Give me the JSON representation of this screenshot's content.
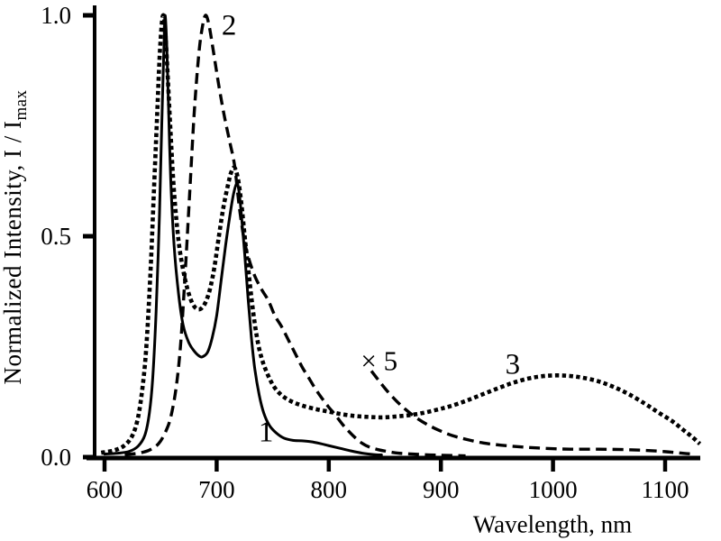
{
  "chart_data": {
    "type": "line",
    "title": "",
    "xlabel": "Wavelength, nm",
    "ylabel": "Normalized Intensity, I / I_max",
    "ylabel_main": "Normalized Intensity, I / I",
    "ylabel_sub": "max",
    "xlim": [
      592,
      1135
    ],
    "ylim": [
      0,
      1.02
    ],
    "x_ticks": [
      600,
      700,
      800,
      900,
      1000,
      1100
    ],
    "x_tick_labels": [
      "600",
      "700",
      "800",
      "900",
      "1000",
      "1100"
    ],
    "y_ticks": [
      0.0,
      0.5,
      1.0
    ],
    "y_tick_labels": [
      "0.0",
      "0.5",
      "1.0"
    ],
    "grid": false,
    "legend": "none",
    "colors": {
      "foreground": "#000000",
      "background": "#ffffff"
    },
    "annotations": [
      {
        "name": "curve-1-label",
        "text": "1",
        "x": 744,
        "y": 0.059,
        "size": 33
      },
      {
        "name": "curve-2-label",
        "text": "2",
        "x": 711,
        "y": 0.98,
        "size": 33
      },
      {
        "name": "curve-3-label",
        "text": "3",
        "x": 964,
        "y": 0.212,
        "size": 33
      },
      {
        "name": "times-5-label",
        "text": "× 5",
        "x": 845,
        "y": 0.219,
        "size": 31
      }
    ],
    "series": [
      {
        "name": "curve-1",
        "label": "1",
        "line_style": "solid",
        "stroke_width": 3,
        "color": "#000000",
        "points": [
          [
            600,
            0.007
          ],
          [
            612,
            0.009
          ],
          [
            622,
            0.013
          ],
          [
            630,
            0.025
          ],
          [
            636,
            0.05
          ],
          [
            640,
            0.1
          ],
          [
            643,
            0.18
          ],
          [
            646,
            0.33
          ],
          [
            649,
            0.55
          ],
          [
            651,
            0.75
          ],
          [
            653,
            0.93
          ],
          [
            654,
            1.0
          ],
          [
            655.5,
            0.93
          ],
          [
            657,
            0.8
          ],
          [
            659,
            0.63
          ],
          [
            662,
            0.48
          ],
          [
            666,
            0.37
          ],
          [
            670,
            0.3
          ],
          [
            675,
            0.26
          ],
          [
            680,
            0.24
          ],
          [
            685,
            0.228
          ],
          [
            688,
            0.228
          ],
          [
            692,
            0.238
          ],
          [
            696,
            0.27
          ],
          [
            700,
            0.32
          ],
          [
            704,
            0.4
          ],
          [
            708,
            0.48
          ],
          [
            712,
            0.55
          ],
          [
            715,
            0.595
          ],
          [
            718,
            0.62
          ],
          [
            720,
            0.6
          ],
          [
            722,
            0.55
          ],
          [
            725,
            0.46
          ],
          [
            728,
            0.36
          ],
          [
            731,
            0.27
          ],
          [
            734,
            0.2
          ],
          [
            738,
            0.14
          ],
          [
            742,
            0.1
          ],
          [
            747,
            0.072
          ],
          [
            753,
            0.055
          ],
          [
            760,
            0.043
          ],
          [
            768,
            0.038
          ],
          [
            776,
            0.037
          ],
          [
            784,
            0.035
          ],
          [
            792,
            0.031
          ],
          [
            800,
            0.026
          ],
          [
            810,
            0.02
          ],
          [
            820,
            0.014
          ],
          [
            830,
            0.009
          ],
          [
            840,
            0.006
          ],
          [
            847,
            0.005
          ]
        ]
      },
      {
        "name": "curve-2",
        "label": "2",
        "line_style": "long-dash",
        "stroke_width": 3.4,
        "color": "#000000",
        "points": [
          [
            618,
            0.006
          ],
          [
            630,
            0.009
          ],
          [
            640,
            0.016
          ],
          [
            648,
            0.03
          ],
          [
            654,
            0.055
          ],
          [
            659,
            0.09
          ],
          [
            664,
            0.16
          ],
          [
            668,
            0.26
          ],
          [
            672,
            0.42
          ],
          [
            676,
            0.6
          ],
          [
            680,
            0.78
          ],
          [
            684,
            0.91
          ],
          [
            687,
            0.97
          ],
          [
            690,
            1.0
          ],
          [
            693,
            0.98
          ],
          [
            697,
            0.92
          ],
          [
            702,
            0.84
          ],
          [
            707,
            0.77
          ],
          [
            712,
            0.71
          ],
          [
            716,
            0.66
          ],
          [
            720,
            0.57
          ],
          [
            724,
            0.5
          ],
          [
            728,
            0.455
          ],
          [
            734,
            0.41
          ],
          [
            740,
            0.38
          ],
          [
            746,
            0.355
          ],
          [
            752,
            0.32
          ],
          [
            758,
            0.295
          ],
          [
            764,
            0.265
          ],
          [
            770,
            0.235
          ],
          [
            776,
            0.205
          ],
          [
            782,
            0.18
          ],
          [
            788,
            0.155
          ],
          [
            794,
            0.133
          ],
          [
            800,
            0.113
          ],
          [
            806,
            0.095
          ],
          [
            812,
            0.075
          ],
          [
            818,
            0.058
          ],
          [
            824,
            0.043
          ],
          [
            830,
            0.031
          ],
          [
            836,
            0.023
          ],
          [
            844,
            0.017
          ],
          [
            852,
            0.013
          ],
          [
            862,
            0.009
          ],
          [
            875,
            0.007
          ],
          [
            890,
            0.005
          ],
          [
            905,
            0.004
          ],
          [
            922,
            0.003
          ]
        ]
      },
      {
        "name": "curve-2-times-5-tail",
        "label": "× 5",
        "line_style": "long-dash",
        "stroke_width": 3.4,
        "color": "#000000",
        "points": [
          [
            838,
            0.195
          ],
          [
            845,
            0.172
          ],
          [
            852,
            0.15
          ],
          [
            860,
            0.128
          ],
          [
            868,
            0.109
          ],
          [
            877,
            0.091
          ],
          [
            887,
            0.075
          ],
          [
            898,
            0.061
          ],
          [
            910,
            0.049
          ],
          [
            923,
            0.04
          ],
          [
            938,
            0.032
          ],
          [
            954,
            0.027
          ],
          [
            972,
            0.023
          ],
          [
            992,
            0.02
          ],
          [
            1015,
            0.018
          ],
          [
            1040,
            0.018
          ],
          [
            1065,
            0.017
          ],
          [
            1085,
            0.015
          ],
          [
            1102,
            0.012
          ],
          [
            1115,
            0.009
          ],
          [
            1124,
            0.007
          ]
        ]
      },
      {
        "name": "curve-3",
        "label": "3",
        "line_style": "dotted",
        "stroke_width": 4.6,
        "color": "#000000",
        "points": [
          [
            597,
            0.01
          ],
          [
            608,
            0.015
          ],
          [
            617,
            0.025
          ],
          [
            624,
            0.045
          ],
          [
            629,
            0.08
          ],
          [
            633,
            0.14
          ],
          [
            637,
            0.24
          ],
          [
            641,
            0.42
          ],
          [
            644,
            0.6
          ],
          [
            647,
            0.78
          ],
          [
            649,
            0.9
          ],
          [
            651,
            0.98
          ],
          [
            652.5,
            1.0
          ],
          [
            654,
            0.97
          ],
          [
            656,
            0.88
          ],
          [
            659,
            0.73
          ],
          [
            662,
            0.6
          ],
          [
            666,
            0.49
          ],
          [
            670,
            0.425
          ],
          [
            674,
            0.38
          ],
          [
            678,
            0.35
          ],
          [
            682,
            0.336
          ],
          [
            686,
            0.336
          ],
          [
            690,
            0.35
          ],
          [
            694,
            0.38
          ],
          [
            698,
            0.43
          ],
          [
            702,
            0.5
          ],
          [
            706,
            0.565
          ],
          [
            710,
            0.615
          ],
          [
            713,
            0.645
          ],
          [
            716,
            0.655
          ],
          [
            719,
            0.63
          ],
          [
            722,
            0.575
          ],
          [
            725,
            0.5
          ],
          [
            728,
            0.43
          ],
          [
            732,
            0.34
          ],
          [
            736,
            0.27
          ],
          [
            740,
            0.225
          ],
          [
            745,
            0.19
          ],
          [
            751,
            0.16
          ],
          [
            758,
            0.14
          ],
          [
            766,
            0.127
          ],
          [
            776,
            0.117
          ],
          [
            788,
            0.109
          ],
          [
            800,
            0.103
          ],
          [
            812,
            0.097
          ],
          [
            824,
            0.093
          ],
          [
            836,
            0.091
          ],
          [
            848,
            0.09
          ],
          [
            860,
            0.092
          ],
          [
            872,
            0.095
          ],
          [
            884,
            0.1
          ],
          [
            896,
            0.107
          ],
          [
            908,
            0.115
          ],
          [
            922,
            0.127
          ],
          [
            936,
            0.141
          ],
          [
            950,
            0.155
          ],
          [
            964,
            0.168
          ],
          [
            978,
            0.178
          ],
          [
            990,
            0.183
          ],
          [
            1002,
            0.185
          ],
          [
            1014,
            0.184
          ],
          [
            1026,
            0.18
          ],
          [
            1040,
            0.172
          ],
          [
            1054,
            0.159
          ],
          [
            1068,
            0.142
          ],
          [
            1082,
            0.121
          ],
          [
            1094,
            0.101
          ],
          [
            1106,
            0.082
          ],
          [
            1116,
            0.062
          ],
          [
            1124,
            0.046
          ],
          [
            1131,
            0.03
          ]
        ]
      }
    ]
  }
}
